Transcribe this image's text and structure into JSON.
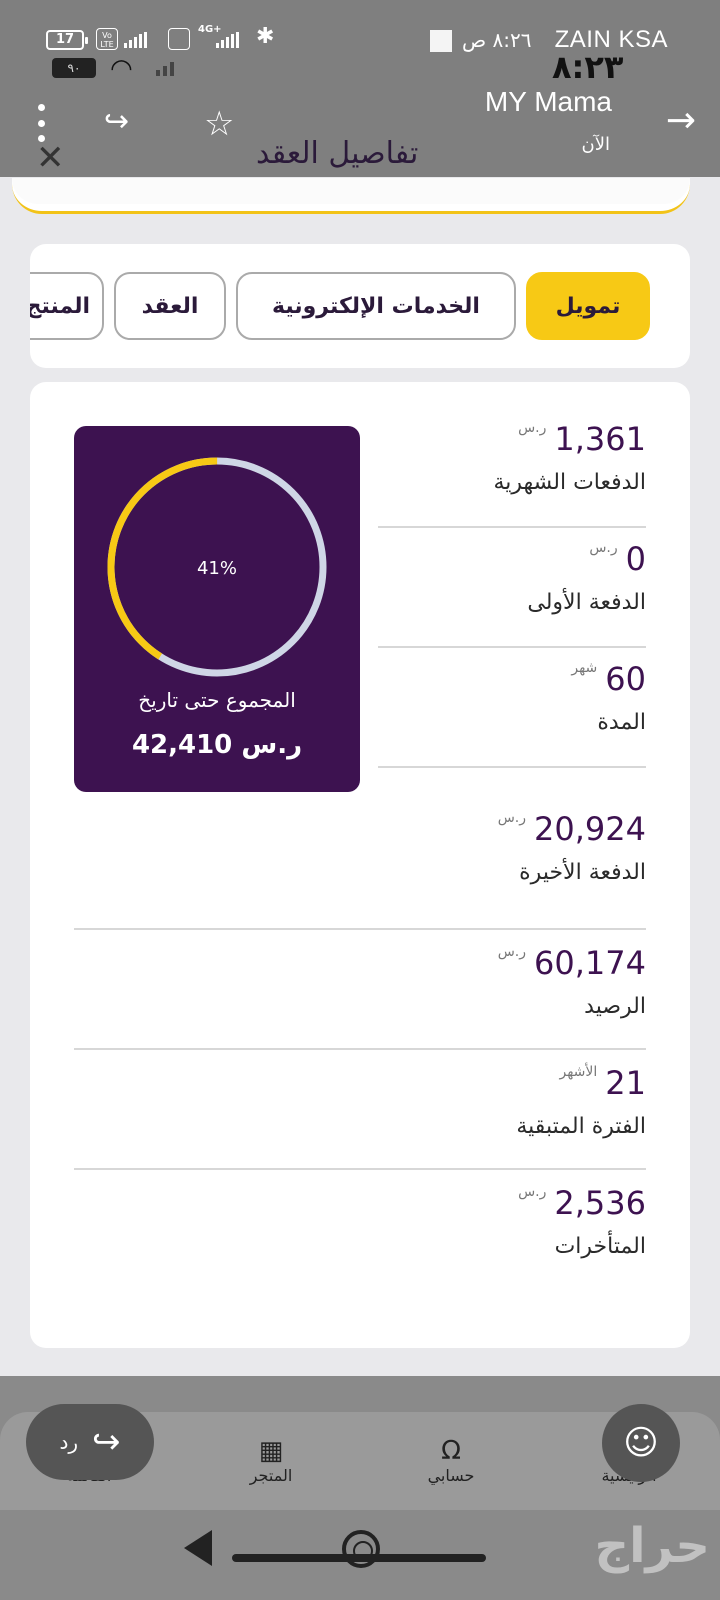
{
  "status_bar": {
    "battery": "17",
    "volte_label": "Vo LTE",
    "network": "4G+",
    "carrier": "ZAIN KSA",
    "time_small": "٨:٢٦ ص",
    "time_big": "٨:٢٣",
    "second_battery": "٩٠"
  },
  "notification": {
    "title": "MY Mama",
    "subtitle": "الآن"
  },
  "header": {
    "title": "تفاصيل العقد"
  },
  "tabs": [
    {
      "label": "تمويل",
      "active": true
    },
    {
      "label": "الخدمات الإلكترونية",
      "active": false
    },
    {
      "label": "العقد",
      "active": false
    },
    {
      "label": "المنتج",
      "active": false
    }
  ],
  "progress": {
    "percent_text": "41%",
    "percent": 41,
    "total_label": "المجموع حتى تاريخ",
    "total_value": "42,410 ر.س"
  },
  "details": [
    {
      "value": "1,361",
      "unit": "ر.س",
      "label": "الدفعات الشهرية"
    },
    {
      "value": "0",
      "unit": "ر.س",
      "label": "الدفعة الأولى"
    },
    {
      "value": "60",
      "unit": "شهر",
      "label": "المدة"
    },
    {
      "value": "20,924",
      "unit": "ر.س",
      "label": "الدفعة الأخيرة"
    },
    {
      "value": "60,174",
      "unit": "ر.س",
      "label": "الرصيد"
    },
    {
      "value": "21",
      "unit": "الأشهر",
      "label": "الفترة المتبقية"
    },
    {
      "value": "2,536",
      "unit": "ر.س",
      "label": "المتأخرات"
    }
  ],
  "bottom_nav": [
    {
      "label": "القائمة",
      "icon": "menu-icon"
    },
    {
      "label": "المتجر",
      "icon": "store-icon"
    },
    {
      "label": "حسابي",
      "icon": "account-icon"
    },
    {
      "label": "الرئيسية",
      "icon": "home-icon"
    }
  ],
  "reply": {
    "label": "رد"
  },
  "watermark": "حراج",
  "colors": {
    "accent_yellow": "#f7c915",
    "brand_purple": "#3d1250",
    "ring_track": "#cfd6e6"
  }
}
